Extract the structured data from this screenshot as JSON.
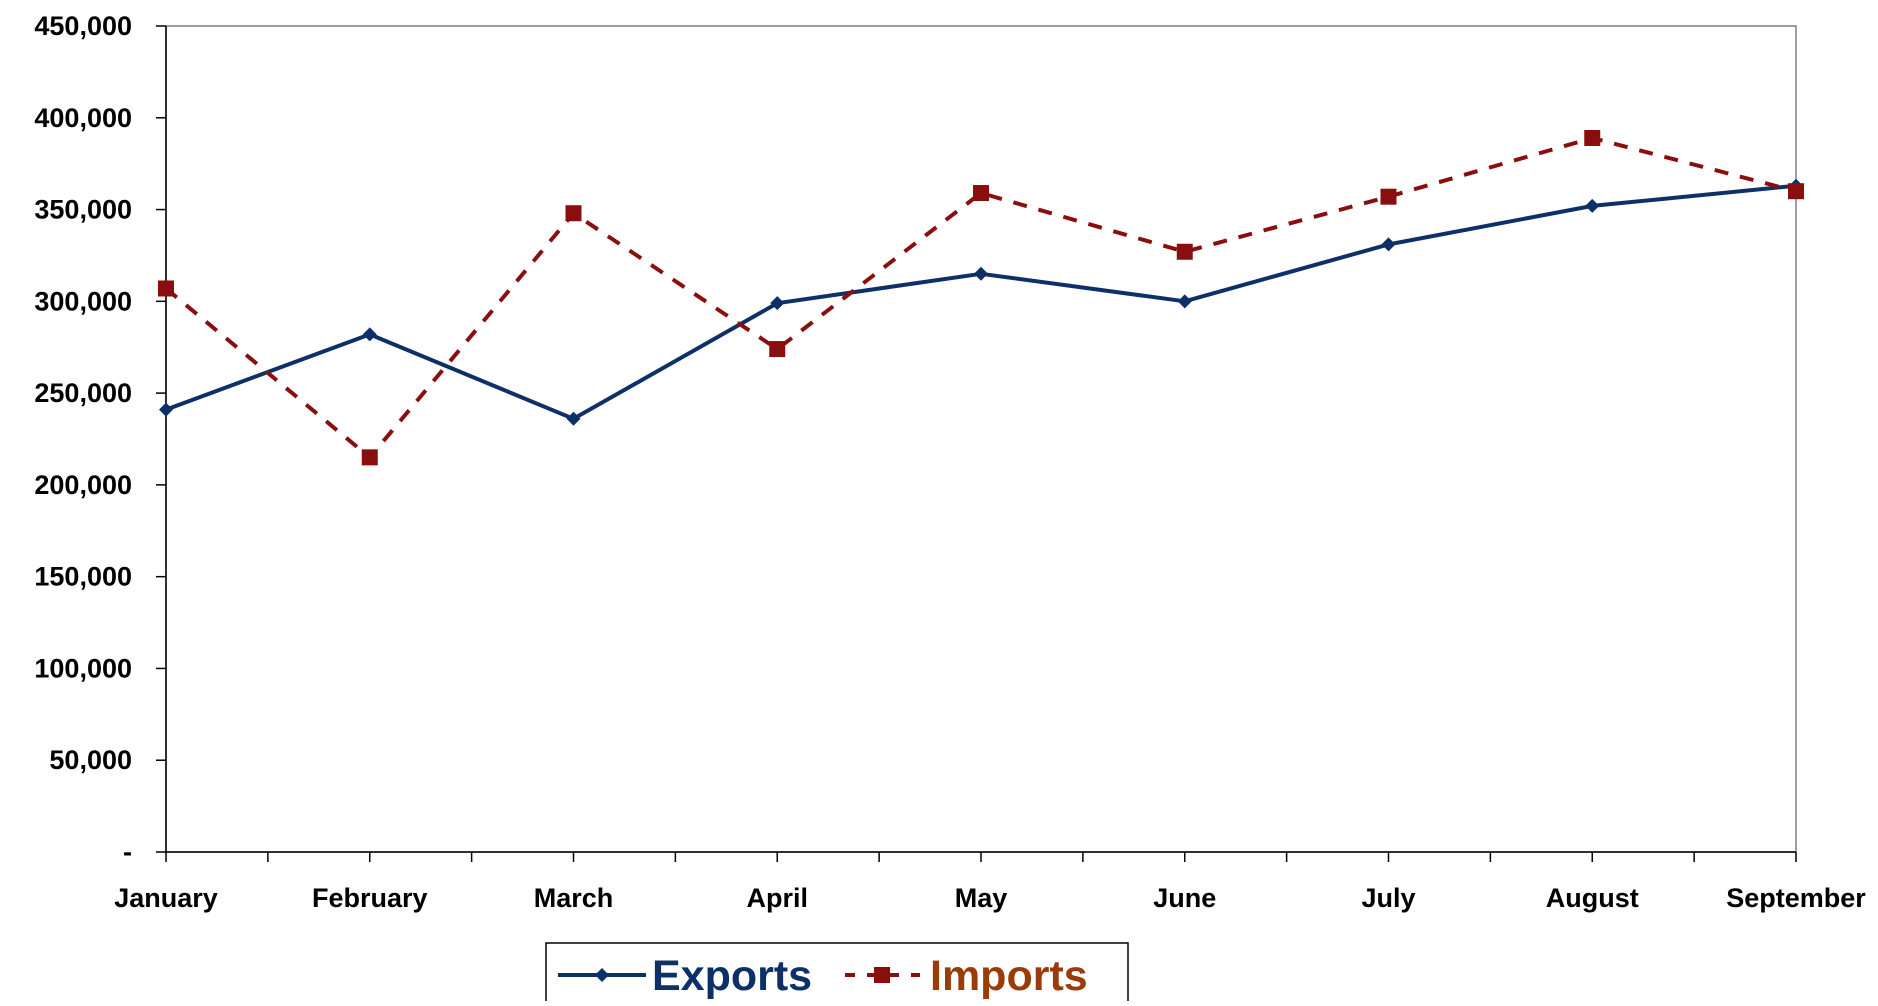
{
  "chart_data": {
    "type": "line",
    "categories": [
      "January",
      "February",
      "March",
      "April",
      "May",
      "June",
      "July",
      "August",
      "September"
    ],
    "series": [
      {
        "name": "Exports",
        "values": [
          241000,
          282000,
          236000,
          299000,
          315000,
          300000,
          331000,
          352000,
          363000
        ],
        "color": "#0d3068",
        "line_style": "solid",
        "marker": "diamond"
      },
      {
        "name": "Imports",
        "values": [
          307000,
          215000,
          348000,
          274000,
          359000,
          327000,
          357000,
          389000,
          360000
        ],
        "color": "#8b0e0e",
        "label_color": "#9a3c0a",
        "line_style": "dashed",
        "marker": "square"
      }
    ],
    "ylim": [
      0,
      450000
    ],
    "yticks": [
      {
        "value": 0,
        "label": "-"
      },
      {
        "value": 50000,
        "label": "50,000"
      },
      {
        "value": 100000,
        "label": "100,000"
      },
      {
        "value": 150000,
        "label": "150,000"
      },
      {
        "value": 200000,
        "label": "200,000"
      },
      {
        "value": 250000,
        "label": "250,000"
      },
      {
        "value": 300000,
        "label": "300,000"
      },
      {
        "value": 350000,
        "label": "350,000"
      },
      {
        "value": 400000,
        "label": "400,000"
      },
      {
        "value": 450000,
        "label": "450,000"
      }
    ],
    "grid": false,
    "legend_position": "bottom",
    "title": "",
    "xlabel": "",
    "ylabel": ""
  }
}
